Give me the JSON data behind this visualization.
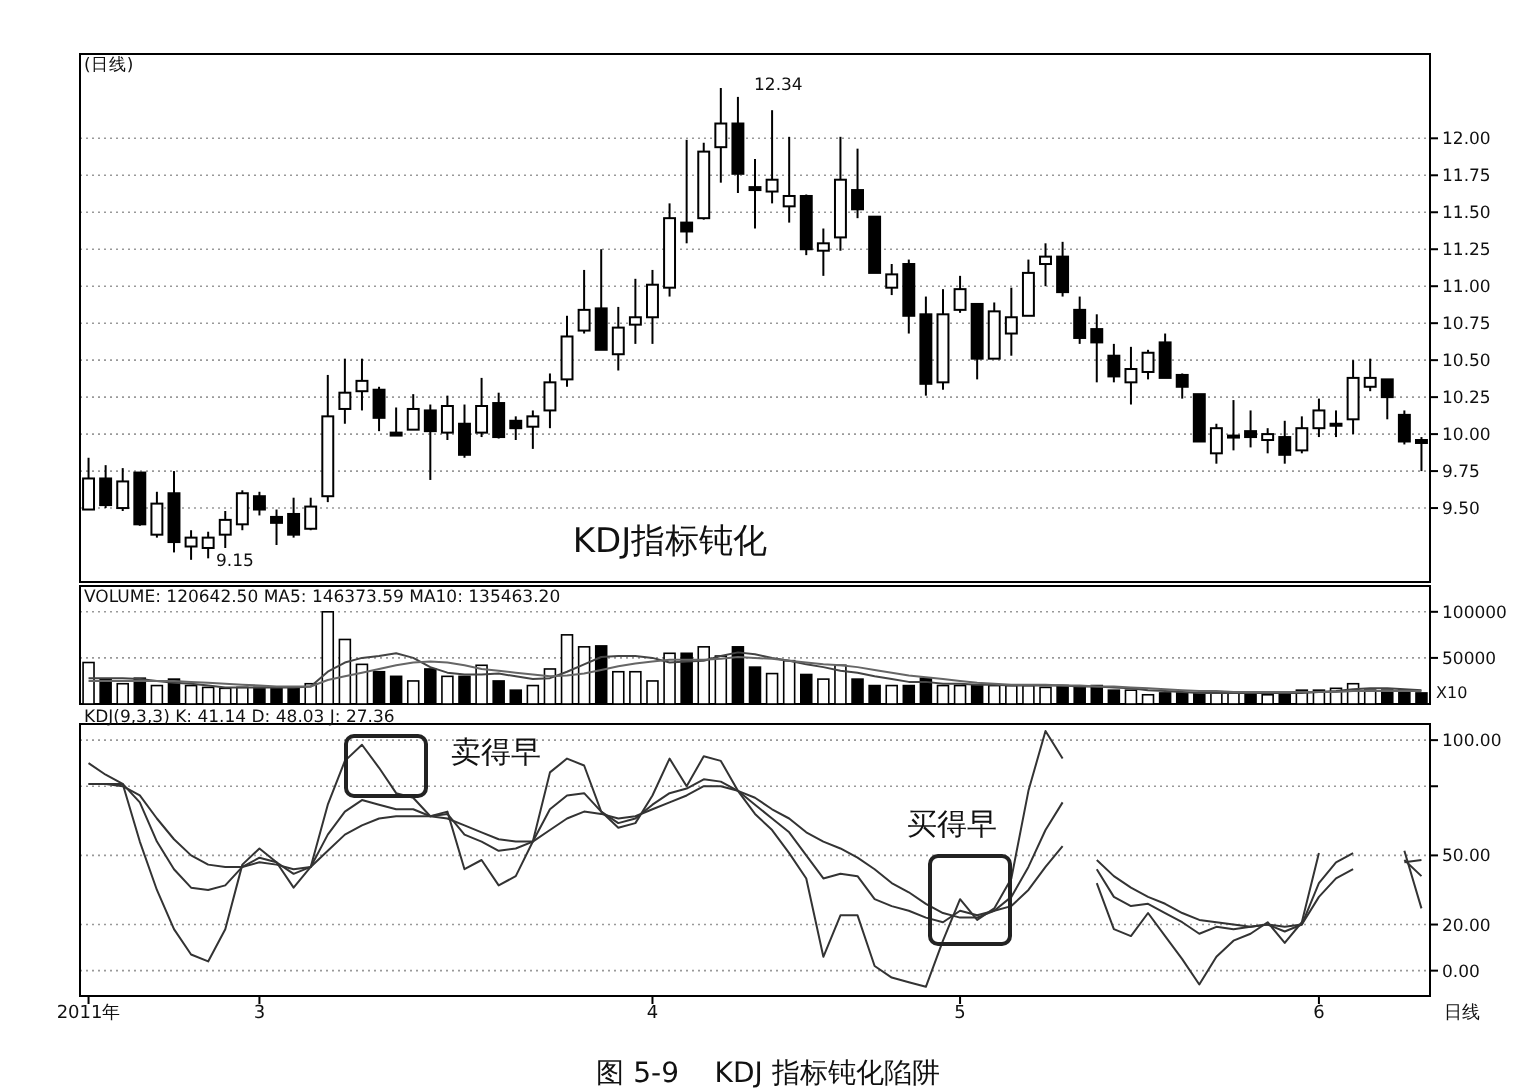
{
  "chart_data": [
    {
      "type": "candlestick",
      "title": "(日线)",
      "color": "#000000",
      "categories": [
        null,
        null,
        null,
        null,
        null,
        null,
        null,
        null,
        null,
        null,
        null,
        null,
        null,
        null,
        null,
        null,
        null,
        null,
        null,
        null,
        null,
        null,
        null,
        null,
        null,
        null,
        null,
        null,
        null,
        null,
        null,
        null,
        null,
        null,
        null,
        null,
        null,
        null,
        null,
        null,
        null,
        null,
        null,
        null,
        null,
        null,
        null,
        null,
        null,
        null,
        null,
        null,
        null,
        null,
        null,
        null,
        null,
        null,
        null,
        null,
        null,
        null,
        null,
        null,
        null,
        null,
        null,
        null,
        null,
        null,
        null,
        null,
        null,
        null,
        null,
        null,
        null,
        null,
        null
      ],
      "ohlc": [
        [
          9.49,
          9.84,
          9.49,
          9.7
        ],
        [
          9.7,
          9.79,
          9.5,
          9.52
        ],
        [
          9.5,
          9.77,
          9.48,
          9.68
        ],
        [
          9.74,
          9.74,
          9.38,
          9.39
        ],
        [
          9.32,
          9.61,
          9.3,
          9.53
        ],
        [
          9.6,
          9.75,
          9.2,
          9.27
        ],
        [
          9.24,
          9.35,
          9.15,
          9.3
        ],
        [
          9.23,
          9.34,
          9.16,
          9.3
        ],
        [
          9.32,
          9.48,
          9.23,
          9.42
        ],
        [
          9.39,
          9.62,
          9.35,
          9.6
        ],
        [
          9.58,
          9.61,
          9.45,
          9.49
        ],
        [
          9.44,
          9.49,
          9.25,
          9.4
        ],
        [
          9.46,
          9.57,
          9.3,
          9.32
        ],
        [
          9.36,
          9.57,
          9.35,
          9.51
        ],
        [
          9.58,
          10.4,
          9.54,
          10.12
        ],
        [
          10.17,
          10.51,
          10.07,
          10.28
        ],
        [
          10.29,
          10.51,
          10.16,
          10.36
        ],
        [
          10.3,
          10.32,
          10.02,
          10.11
        ],
        [
          10.01,
          10.18,
          9.99,
          9.99
        ],
        [
          10.03,
          10.27,
          10.03,
          10.17
        ],
        [
          10.16,
          10.2,
          9.69,
          10.02
        ],
        [
          10.01,
          10.26,
          9.96,
          10.19
        ],
        [
          10.07,
          10.2,
          9.84,
          9.86
        ],
        [
          10.01,
          10.38,
          9.98,
          10.19
        ],
        [
          10.21,
          10.28,
          9.97,
          9.98
        ],
        [
          10.09,
          10.12,
          9.96,
          10.04
        ],
        [
          10.05,
          10.16,
          9.9,
          10.12
        ],
        [
          10.16,
          10.41,
          10.04,
          10.35
        ],
        [
          10.37,
          10.8,
          10.32,
          10.66
        ],
        [
          10.7,
          11.11,
          10.68,
          10.84
        ],
        [
          10.85,
          11.25,
          10.57,
          10.57
        ],
        [
          10.54,
          10.86,
          10.43,
          10.72
        ],
        [
          10.74,
          11.05,
          10.61,
          10.79
        ],
        [
          10.79,
          11.11,
          10.61,
          11.01
        ],
        [
          10.99,
          11.56,
          10.93,
          11.46
        ],
        [
          11.43,
          11.99,
          11.29,
          11.37
        ],
        [
          11.46,
          11.97,
          11.45,
          11.91
        ],
        [
          11.94,
          12.34,
          11.7,
          12.1
        ],
        [
          12.1,
          12.28,
          11.63,
          11.76
        ],
        [
          11.67,
          11.86,
          11.39,
          11.65
        ],
        [
          11.64,
          12.19,
          11.56,
          11.72
        ],
        [
          11.54,
          12.01,
          11.43,
          11.61
        ],
        [
          11.61,
          11.62,
          11.21,
          11.25
        ],
        [
          11.24,
          11.39,
          11.07,
          11.29
        ],
        [
          11.33,
          12.01,
          11.24,
          11.72
        ],
        [
          11.65,
          11.93,
          11.46,
          11.52
        ],
        [
          11.47,
          11.47,
          11.09,
          11.09
        ],
        [
          10.99,
          11.15,
          10.94,
          11.08
        ],
        [
          11.15,
          11.18,
          10.68,
          10.8
        ],
        [
          10.81,
          10.93,
          10.26,
          10.34
        ],
        [
          10.35,
          10.98,
          10.3,
          10.81
        ],
        [
          10.84,
          11.07,
          10.82,
          10.98
        ],
        [
          10.88,
          10.88,
          10.37,
          10.51
        ],
        [
          10.51,
          10.89,
          10.51,
          10.83
        ],
        [
          10.68,
          10.99,
          10.53,
          10.79
        ],
        [
          10.8,
          11.18,
          10.8,
          11.09
        ],
        [
          11.15,
          11.29,
          11.0,
          11.2
        ],
        [
          11.2,
          11.3,
          10.93,
          10.96
        ],
        [
          10.84,
          10.93,
          10.61,
          10.65
        ],
        [
          10.71,
          10.81,
          10.35,
          10.62
        ],
        [
          10.53,
          10.61,
          10.35,
          10.39
        ],
        [
          10.35,
          10.59,
          10.2,
          10.44
        ],
        [
          10.42,
          10.57,
          10.37,
          10.55
        ],
        [
          10.62,
          10.68,
          10.38,
          10.38
        ],
        [
          10.4,
          10.41,
          10.24,
          10.32
        ],
        [
          10.27,
          10.27,
          9.95,
          9.95
        ],
        [
          9.87,
          10.07,
          9.8,
          10.04
        ],
        [
          9.98,
          10.23,
          9.89,
          9.99
        ],
        [
          10.02,
          10.16,
          9.91,
          9.98
        ],
        [
          9.96,
          10.04,
          9.87,
          10.0
        ],
        [
          9.98,
          10.09,
          9.8,
          9.86
        ],
        [
          9.89,
          10.12,
          9.87,
          10.04
        ],
        [
          10.04,
          10.24,
          9.98,
          10.16
        ],
        [
          10.06,
          10.16,
          9.98,
          10.07
        ],
        [
          10.1,
          10.5,
          10.0,
          10.38
        ],
        [
          10.32,
          10.51,
          10.29,
          10.38
        ],
        [
          10.37,
          10.37,
          10.1,
          10.25
        ],
        [
          10.13,
          10.16,
          9.93,
          9.95
        ],
        [
          9.96,
          9.98,
          9.75,
          9.94
        ]
      ],
      "ylim": [
        9.0,
        12.57
      ],
      "yticks": [
        {
          "value": 9.5,
          "label": "9.50"
        },
        {
          "value": 9.75,
          "label": "9.75"
        },
        {
          "value": 10,
          "label": "10.00"
        },
        {
          "value": 10.25,
          "label": "10.25"
        },
        {
          "value": 10.5,
          "label": "10.50"
        },
        {
          "value": 10.75,
          "label": "10.75"
        },
        {
          "value": 11,
          "label": "11.00"
        },
        {
          "value": 11.25,
          "label": "11.25"
        },
        {
          "value": 11.5,
          "label": "11.50"
        },
        {
          "value": 11.75,
          "label": "11.75"
        },
        {
          "value": 12,
          "label": "12.00"
        }
      ],
      "grid": "y",
      "tick_labels": "y",
      "annotations": [
        "12.34",
        "9.15",
        "KDJ指标钝化"
      ]
    },
    {
      "type": "bar",
      "title": "VOLUME: 120642.50  MA5: 146373.59  MA10: 135463.20",
      "categories": [
        null,
        null,
        null,
        null,
        null,
        null,
        null,
        null,
        null,
        null,
        null,
        null,
        null,
        null,
        null,
        null,
        null,
        null,
        null,
        null,
        null,
        null,
        null,
        null,
        null,
        null,
        null,
        null,
        null,
        null,
        null,
        null,
        null,
        null,
        null,
        null,
        null,
        null,
        null,
        null,
        null,
        null,
        null,
        null,
        null,
        null,
        null,
        null,
        null,
        null,
        null,
        null,
        null,
        null,
        null,
        null,
        null,
        null,
        null,
        null,
        null,
        null,
        null,
        null,
        null,
        null,
        null,
        null,
        null,
        null,
        null,
        null,
        null,
        null,
        null,
        null,
        null,
        null,
        null
      ],
      "series": [
        {
          "type": "bar",
          "color": "#000000",
          "values": [
            45000,
            27000,
            22000,
            28000,
            20000,
            27000,
            20000,
            18000,
            17000,
            18000,
            18000,
            18000,
            18000,
            22000,
            100000,
            70000,
            43000,
            35000,
            30000,
            25000,
            38000,
            30000,
            30000,
            42000,
            25000,
            15000,
            20000,
            38000,
            75000,
            62000,
            63000,
            35000,
            35000,
            25000,
            55000,
            55000,
            62000,
            52000,
            62000,
            40000,
            33000,
            47000,
            32000,
            27000,
            42000,
            27000,
            20000,
            20000,
            20000,
            28000,
            20000,
            20000,
            20000,
            20000,
            20000,
            20000,
            18000,
            20000,
            18000,
            20000,
            15000,
            15000,
            10000,
            12000,
            12000,
            12000,
            12000,
            12000,
            12000,
            10000,
            12000,
            15000,
            15000,
            17000,
            22000,
            15000,
            15000,
            15000,
            12000
          ],
          "colors": [
            "#ffffff",
            "#000000",
            "#ffffff",
            "#000000",
            "#ffffff",
            "#000000",
            "#ffffff",
            "#ffffff",
            "#ffffff",
            "#ffffff",
            "#000000",
            "#000000",
            "#000000",
            "#ffffff",
            "#ffffff",
            "#ffffff",
            "#ffffff",
            "#000000",
            "#000000",
            "#ffffff",
            "#000000",
            "#ffffff",
            "#000000",
            "#ffffff",
            "#000000",
            "#000000",
            "#ffffff",
            "#ffffff",
            "#ffffff",
            "#ffffff",
            "#000000",
            "#ffffff",
            "#ffffff",
            "#ffffff",
            "#ffffff",
            "#000000",
            "#ffffff",
            "#ffffff",
            "#000000",
            "#000000",
            "#ffffff",
            "#ffffff",
            "#000000",
            "#ffffff",
            "#ffffff",
            "#000000",
            "#000000",
            "#ffffff",
            "#000000",
            "#000000",
            "#ffffff",
            "#ffffff",
            "#000000",
            "#ffffff",
            "#ffffff",
            "#ffffff",
            "#ffffff",
            "#000000",
            "#000000",
            "#000000",
            "#000000",
            "#ffffff",
            "#ffffff",
            "#000000",
            "#000000",
            "#000000",
            "#ffffff",
            "#ffffff",
            "#000000",
            "#ffffff",
            "#000000",
            "#ffffff",
            "#ffffff",
            "#ffffff",
            "#ffffff",
            "#ffffff",
            "#000000",
            "#000000",
            "#000000"
          ]
        },
        {
          "type": "line",
          "color": "#444444",
          "values": [
            28000,
            28000,
            28000,
            27000,
            25000,
            23000,
            22000,
            20000,
            18000,
            18000,
            18000,
            18000,
            18000,
            19000,
            35000,
            45000,
            50000,
            52000,
            55000,
            50000,
            40000,
            34000,
            32000,
            32000,
            33000,
            30000,
            27000,
            28000,
            35000,
            43000,
            51000,
            52000,
            52000,
            50000,
            45000,
            46000,
            47000,
            52000,
            56000,
            54000,
            50000,
            47000,
            43000,
            40000,
            36000,
            34000,
            30000,
            27000,
            24000,
            24000,
            22000,
            22000,
            21000,
            21000,
            20000,
            20000,
            20000,
            20000,
            19000,
            19000,
            18000,
            17000,
            15000,
            14000,
            13000,
            12000,
            12000,
            12000,
            12000,
            12000,
            12000,
            12000,
            13000,
            14000,
            16000,
            17000,
            17000,
            16000,
            15000
          ]
        },
        {
          "type": "line",
          "color": "#666666",
          "values": [
            25000,
            25000,
            25000,
            25000,
            25000,
            25000,
            24000,
            23000,
            22000,
            21000,
            20000,
            19000,
            19000,
            19000,
            26000,
            30000,
            34000,
            38000,
            42000,
            45000,
            46000,
            45000,
            42000,
            38000,
            36000,
            34000,
            32000,
            30000,
            31000,
            33000,
            37000,
            41000,
            44000,
            46000,
            48000,
            48000,
            48000,
            49000,
            51000,
            50000,
            49000,
            47000,
            45000,
            43000,
            42000,
            40000,
            37000,
            34000,
            31000,
            29000,
            27000,
            25000,
            23000,
            22000,
            21000,
            21000,
            21000,
            20000,
            20000,
            19000,
            19000,
            18000,
            17000,
            16000,
            15000,
            14000,
            14000,
            13000,
            13000,
            13000,
            13000,
            13000,
            13000,
            13000,
            14000,
            14000,
            14000,
            14000,
            14000
          ]
        }
      ],
      "ylim": [
        0,
        128000
      ],
      "yticks": [
        50000,
        100000
      ],
      "grid": "y",
      "tick_labels": "y",
      "annotations": [
        "X10"
      ]
    },
    {
      "type": "line",
      "title": "KDJ(9,3,3)  K: 41.14  D: 48.03  J: 27.36",
      "categories": [
        "2011年",
        null,
        null,
        null,
        null,
        null,
        null,
        null,
        null,
        null,
        "3",
        null,
        null,
        null,
        null,
        null,
        null,
        null,
        null,
        null,
        null,
        null,
        null,
        null,
        null,
        null,
        null,
        null,
        null,
        null,
        null,
        null,
        null,
        "4",
        null,
        null,
        null,
        null,
        null,
        null,
        null,
        null,
        null,
        null,
        null,
        null,
        null,
        null,
        null,
        null,
        null,
        "5",
        null,
        null,
        null,
        null,
        null,
        null,
        null,
        null,
        null,
        null,
        null,
        null,
        null,
        null,
        null,
        null,
        null,
        null,
        null,
        null,
        "6",
        null,
        null,
        null,
        null,
        null,
        null
      ],
      "series": [
        {
          "color": "#333333",
          "values": [
            81,
            81,
            81,
            73,
            56,
            44,
            36,
            35,
            37,
            45,
            49,
            47,
            42,
            45,
            59,
            69,
            74,
            72,
            70,
            70,
            67,
            68,
            59,
            56,
            52,
            53,
            56,
            70,
            76,
            77,
            69,
            64,
            66,
            72,
            77,
            79,
            83,
            82,
            78,
            72,
            66,
            60,
            50,
            40,
            42,
            41,
            31,
            28,
            26,
            23,
            21,
            26,
            24,
            26,
            32,
            45,
            61,
            73,
            null,
            44,
            32,
            28,
            29,
            25,
            21,
            16,
            19,
            18,
            19,
            20,
            17,
            20,
            38,
            47,
            51,
            null,
            null,
            48,
            41
          ]
        },
        {
          "color": "#333333",
          "values": [
            81,
            81,
            80,
            76,
            66,
            57,
            50,
            46,
            45,
            45,
            47,
            46,
            44,
            45,
            52,
            59,
            63,
            66,
            67,
            67,
            67,
            66,
            63,
            60,
            57,
            56,
            56,
            61,
            66,
            69,
            68,
            66,
            67,
            70,
            73,
            76,
            80,
            80,
            78,
            75,
            70,
            66,
            60,
            56,
            53,
            49,
            44,
            38,
            34,
            29,
            25,
            23,
            23,
            26,
            28,
            35,
            45,
            54,
            null,
            48,
            41,
            36,
            32,
            29,
            25,
            22,
            21,
            20,
            19,
            20,
            19,
            20,
            32,
            40,
            44,
            null,
            null,
            47,
            48
          ]
        },
        {
          "color": "#333333",
          "values": [
            90,
            85,
            81,
            56,
            35,
            18,
            7,
            4,
            18,
            46,
            53,
            47,
            36,
            45,
            72,
            91,
            98,
            88,
            77,
            75,
            67,
            69,
            44,
            48,
            37,
            41,
            56,
            86,
            92,
            89,
            69,
            62,
            64,
            76,
            92,
            80,
            93,
            91,
            78,
            68,
            61,
            51,
            40,
            6,
            24,
            24,
            2,
            -3,
            -5,
            -7,
            13,
            31,
            22,
            27,
            40,
            78,
            104,
            92,
            null,
            38,
            18,
            15,
            25,
            15,
            5,
            -6,
            6,
            13,
            16,
            21,
            12,
            21,
            51,
            null,
            null,
            null,
            null,
            52,
            27
          ]
        }
      ],
      "ylim": [
        -11,
        107
      ],
      "yticks": [
        {
          "value": 0,
          "label": "0.00"
        },
        {
          "value": 20,
          "label": "20.00"
        },
        {
          "value": 50,
          "label": "50.00"
        },
        {
          "value": 80,
          "label": null
        },
        {
          "value": 100,
          "label": "100.00"
        }
      ],
      "grid": "y",
      "annotations": [
        "卖得早",
        "买得早",
        "日线",
        "图 5-9    KDJ 指标钝化陷阱"
      ]
    }
  ]
}
